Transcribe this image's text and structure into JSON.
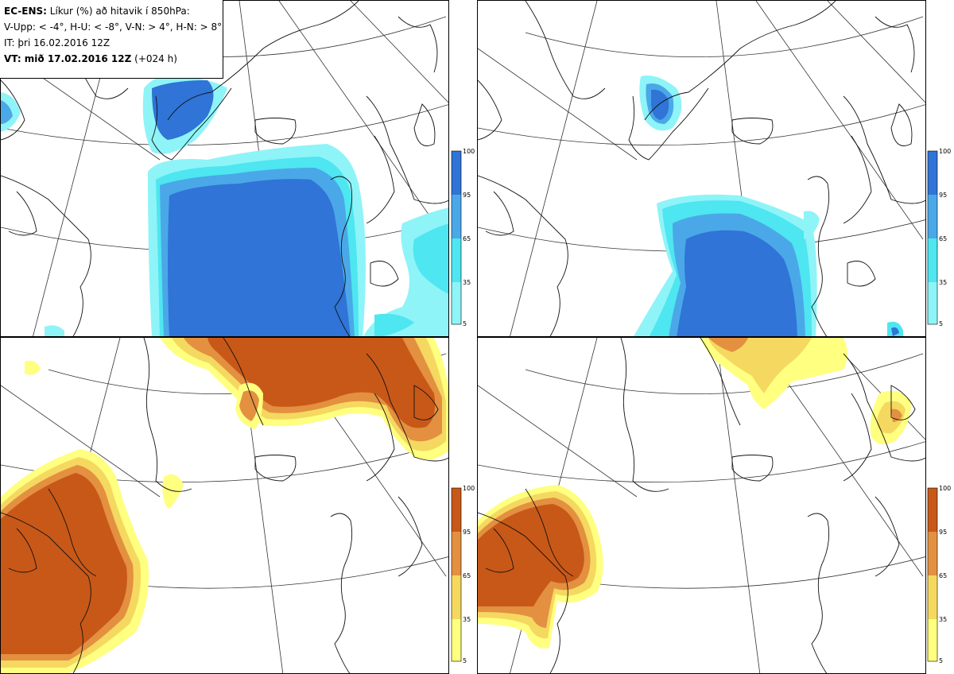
{
  "header": {
    "product": "EC-ENS:",
    "product_desc": "Líkur (%) að hitavik í 850hPa:",
    "thresholds": "V-Upp: < -4°, H-U: < -8°, V-N: > 4°, H-N: > 8°",
    "issue_time": "IT: þri 16.02.2016 12Z",
    "valid_prefix": "VT: mið 17.02.2016 12Z",
    "valid_lead": "(+024 h)"
  },
  "colors": {
    "blue_scale": [
      "#8ef4f8",
      "#4ee6f0",
      "#4aa8e8",
      "#2f74d6"
    ],
    "orange_scale": [
      "#ffff80",
      "#f5d860",
      "#e39040",
      "#c85818"
    ]
  },
  "colorbar": {
    "ticks": [
      "100",
      "95",
      "65",
      "35",
      "5"
    ]
  },
  "panels": [
    {
      "id": "v-upp",
      "palette": "blue"
    },
    {
      "id": "h-u",
      "palette": "blue"
    },
    {
      "id": "v-n",
      "palette": "orange"
    },
    {
      "id": "h-n",
      "palette": "orange"
    }
  ]
}
